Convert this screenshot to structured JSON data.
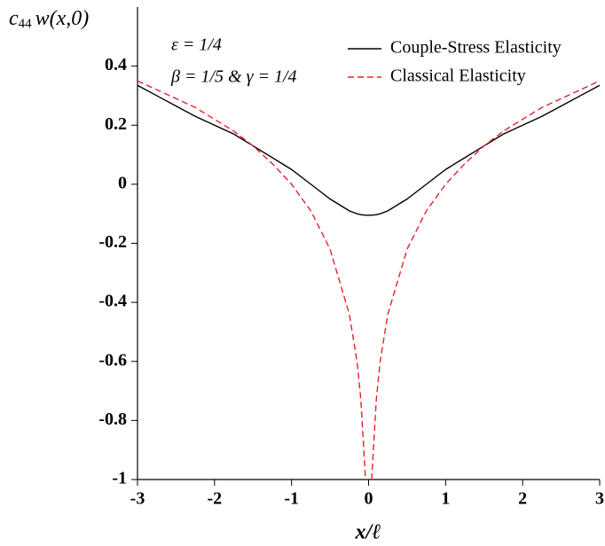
{
  "chart_data": {
    "type": "line",
    "ylabel": [
      "c",
      "44",
      "w(x,0)"
    ],
    "xlabel": "x/ℓ",
    "annotations": [
      "ε = 1/4",
      "β = 1/5 & γ = 1/4"
    ],
    "x": [
      -3,
      -2.75,
      -2.5,
      -2.25,
      -2,
      -1.75,
      -1.5,
      -1.25,
      -1,
      -0.75,
      -0.5,
      -0.25,
      -0.15,
      -0.1,
      -0.04,
      0,
      0.04,
      0.1,
      0.15,
      0.25,
      0.5,
      0.75,
      1,
      1.25,
      1.5,
      1.75,
      2,
      2.25,
      2.5,
      2.75,
      3
    ],
    "series": [
      {
        "name": "Couple-Stress Elasticity",
        "color": "#000000",
        "dash": false,
        "values": [
          0.335,
          0.3,
          0.265,
          0.23,
          0.2,
          0.17,
          0.13,
          0.09,
          0.05,
          0.0,
          -0.05,
          -0.09,
          -0.1,
          -0.103,
          -0.105,
          -0.105,
          -0.105,
          -0.103,
          -0.1,
          -0.09,
          -0.05,
          0.0,
          0.05,
          0.09,
          0.13,
          0.17,
          0.2,
          0.23,
          0.265,
          0.3,
          0.335
        ]
      },
      {
        "name": "Classical Elasticity",
        "color": "#e8202a",
        "dash": true,
        "values": [
          0.35,
          0.32,
          0.29,
          0.26,
          0.22,
          0.18,
          0.13,
          0.07,
          0.0,
          -0.09,
          -0.22,
          -0.44,
          -0.6,
          -0.73,
          -1.0,
          null,
          -1.0,
          -0.73,
          -0.6,
          -0.44,
          -0.22,
          -0.09,
          0.0,
          0.07,
          0.13,
          0.18,
          0.22,
          0.26,
          0.29,
          0.32,
          0.35
        ]
      }
    ],
    "xlim": [
      -3,
      3
    ],
    "xticks": [
      -3,
      -2,
      -1,
      0,
      1,
      2,
      3
    ],
    "ylim": [
      -1,
      0.6
    ],
    "yticks": [
      -1,
      -0.8,
      -0.6,
      -0.4,
      -0.2,
      0,
      0.2,
      0.4
    ],
    "grid": false
  }
}
